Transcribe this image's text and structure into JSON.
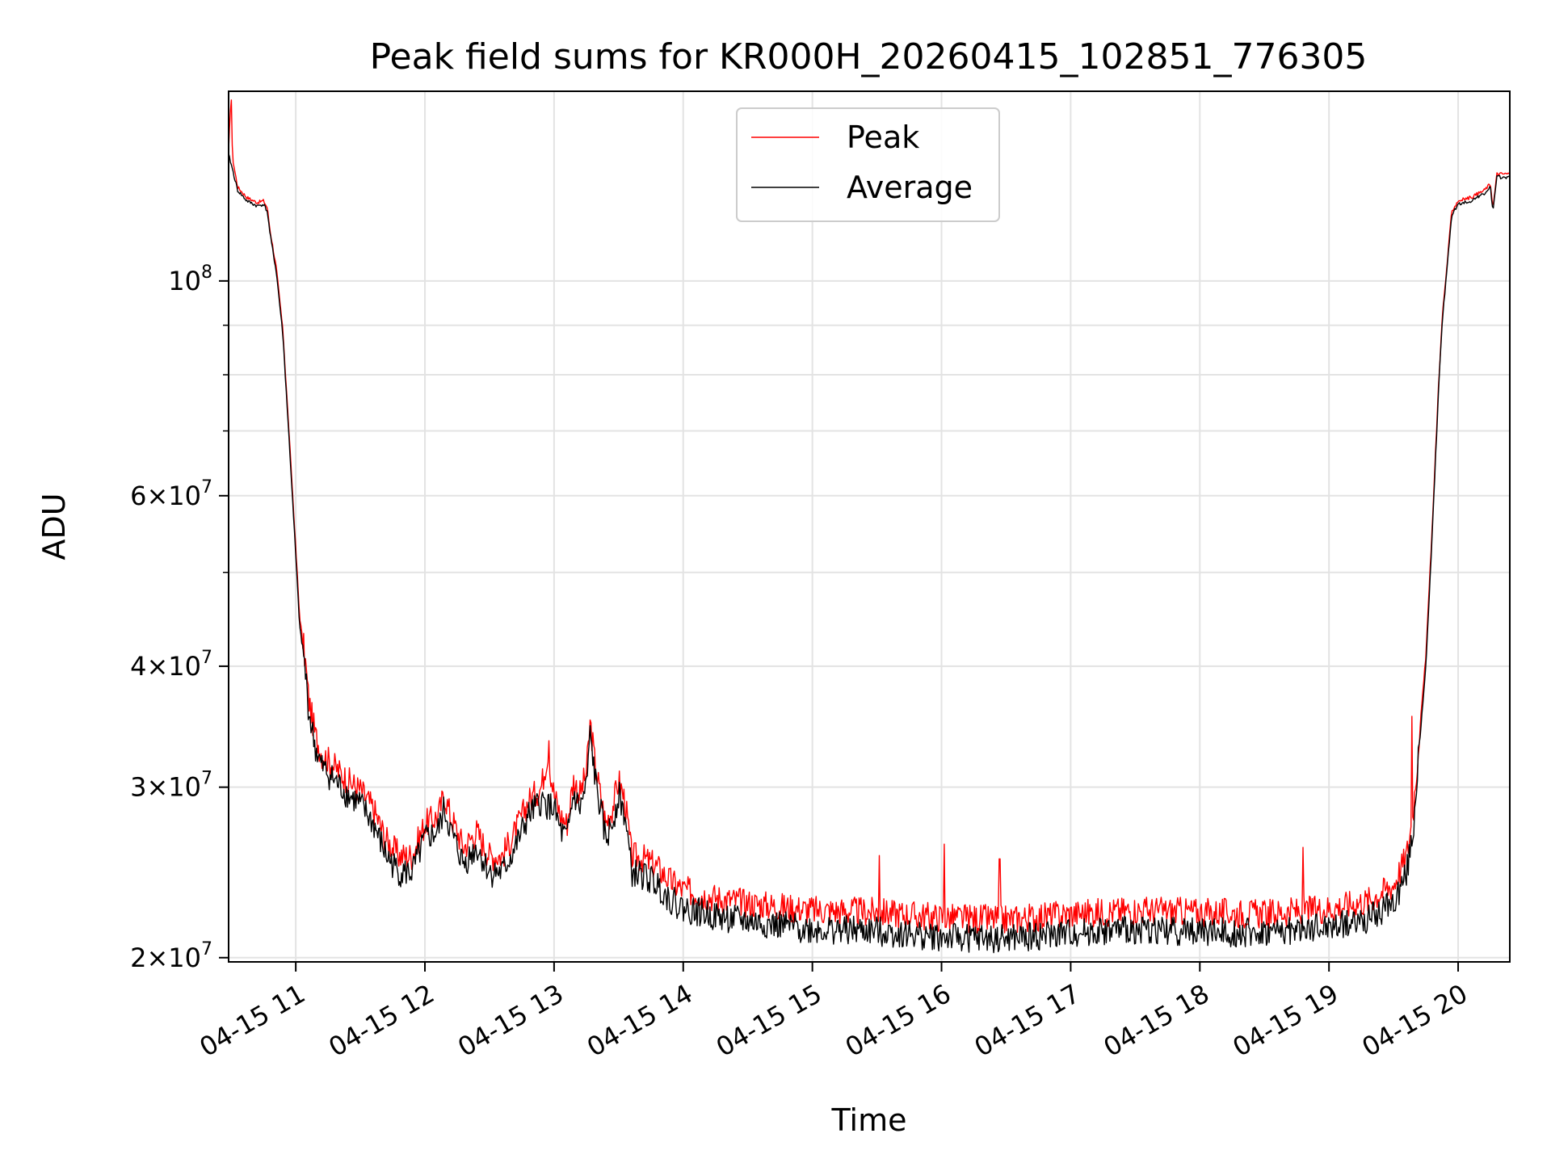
{
  "chart_data": {
    "type": "line",
    "title": "Peak field sums for KR000H_20260415_102851_776305",
    "xlabel": "Time",
    "ylabel": "ADU",
    "yscale": "log",
    "xlim_hours": [
      10.48,
      20.4
    ],
    "ylim": [
      19800000,
      157000000
    ],
    "x_ticks": [
      {
        "value": 11,
        "label": "04-15 11"
      },
      {
        "value": 12,
        "label": "04-15 12"
      },
      {
        "value": 13,
        "label": "04-15 13"
      },
      {
        "value": 14,
        "label": "04-15 14"
      },
      {
        "value": 15,
        "label": "04-15 15"
      },
      {
        "value": 16,
        "label": "04-15 16"
      },
      {
        "value": 17,
        "label": "04-15 17"
      },
      {
        "value": 18,
        "label": "04-15 18"
      },
      {
        "value": 19,
        "label": "04-15 19"
      },
      {
        "value": 20,
        "label": "04-15 20"
      }
    ],
    "y_ticks": [
      {
        "value": 20000000,
        "mant": "2",
        "exp": "7"
      },
      {
        "value": 30000000,
        "mant": "3",
        "exp": "7"
      },
      {
        "value": 40000000,
        "mant": "4",
        "exp": "7"
      },
      {
        "value": 60000000,
        "mant": "6",
        "exp": "7"
      },
      {
        "value": 100000000,
        "mant": "",
        "exp": "8"
      }
    ],
    "y_minor_ticks": [
      50000000,
      70000000,
      80000000,
      90000000
    ],
    "grid": true,
    "legend": {
      "position": "top-center",
      "entries": [
        {
          "name": "Peak",
          "color": "#ff0000"
        },
        {
          "name": "Average",
          "color": "#000000"
        }
      ]
    },
    "series": [
      {
        "name": "Average",
        "color": "#000000",
        "points": [
          [
            10.48,
            135000000
          ],
          [
            10.5,
            132000000
          ],
          [
            10.55,
            124000000
          ],
          [
            10.62,
            121000000
          ],
          [
            10.7,
            119500000
          ],
          [
            10.75,
            120000000
          ],
          [
            10.78,
            118000000
          ],
          [
            10.8,
            112000000
          ],
          [
            10.85,
            102000000
          ],
          [
            10.9,
            88000000
          ],
          [
            10.95,
            68000000
          ],
          [
            11.0,
            52000000
          ],
          [
            11.03,
            44000000
          ],
          [
            11.07,
            40000000
          ],
          [
            11.1,
            36000000
          ],
          [
            11.15,
            33000000
          ],
          [
            11.2,
            31500000
          ],
          [
            11.3,
            30500000
          ],
          [
            11.4,
            29500000
          ],
          [
            11.5,
            28800000
          ],
          [
            11.6,
            27500000
          ],
          [
            11.7,
            25500000
          ],
          [
            11.8,
            24500000
          ],
          [
            11.9,
            24500000
          ],
          [
            12.0,
            26500000
          ],
          [
            12.1,
            27000000
          ],
          [
            12.15,
            28500000
          ],
          [
            12.2,
            27000000
          ],
          [
            12.3,
            25000000
          ],
          [
            12.4,
            26000000
          ],
          [
            12.5,
            24500000
          ],
          [
            12.6,
            24500000
          ],
          [
            12.7,
            26000000
          ],
          [
            12.8,
            28000000
          ],
          [
            12.9,
            29000000
          ],
          [
            13.0,
            28500000
          ],
          [
            13.05,
            27000000
          ],
          [
            13.1,
            26500000
          ],
          [
            13.15,
            29500000
          ],
          [
            13.2,
            28500000
          ],
          [
            13.25,
            30000000
          ],
          [
            13.28,
            34000000
          ],
          [
            13.32,
            30500000
          ],
          [
            13.4,
            26500000
          ],
          [
            13.45,
            27500000
          ],
          [
            13.5,
            29500000
          ],
          [
            13.55,
            28000000
          ],
          [
            13.6,
            24500000
          ],
          [
            13.7,
            24300000
          ],
          [
            13.8,
            23800000
          ],
          [
            13.9,
            23000000
          ],
          [
            14.0,
            22500000
          ],
          [
            14.3,
            22000000
          ],
          [
            14.6,
            21700000
          ],
          [
            15.0,
            21400000
          ],
          [
            15.5,
            21300000
          ],
          [
            16.0,
            21000000
          ],
          [
            16.5,
            20900000
          ],
          [
            17.0,
            21200000
          ],
          [
            17.5,
            21400000
          ],
          [
            18.0,
            21300000
          ],
          [
            18.5,
            21200000
          ],
          [
            19.0,
            21500000
          ],
          [
            19.3,
            21900000
          ],
          [
            19.5,
            22800000
          ],
          [
            19.6,
            24500000
          ],
          [
            19.65,
            27000000
          ],
          [
            19.7,
            33000000
          ],
          [
            19.75,
            40000000
          ],
          [
            19.8,
            55000000
          ],
          [
            19.85,
            78000000
          ],
          [
            19.88,
            92000000
          ],
          [
            19.9,
            98000000
          ],
          [
            19.95,
            117000000
          ],
          [
            20.0,
            120000000
          ],
          [
            20.1,
            121000000
          ],
          [
            20.2,
            123000000
          ],
          [
            20.25,
            125000000
          ],
          [
            20.27,
            118000000
          ],
          [
            20.3,
            128000000
          ],
          [
            20.4,
            128000000
          ]
        ]
      },
      {
        "name": "Peak",
        "color": "#ff0000",
        "points": [
          [
            10.48,
            136000000
          ],
          [
            10.5,
            157000000
          ],
          [
            10.51,
            134000000
          ],
          [
            10.55,
            125000000
          ],
          [
            10.62,
            122000000
          ],
          [
            10.7,
            120500000
          ],
          [
            10.75,
            121000000
          ],
          [
            10.78,
            119000000
          ],
          [
            10.8,
            113000000
          ],
          [
            10.85,
            103000000
          ],
          [
            10.9,
            89000000
          ],
          [
            10.95,
            69000000
          ],
          [
            11.0,
            53000000
          ],
          [
            11.03,
            45000000
          ],
          [
            11.07,
            41000000
          ],
          [
            11.1,
            37000000
          ],
          [
            11.15,
            34000000
          ],
          [
            11.2,
            32500000
          ],
          [
            11.3,
            31500000
          ],
          [
            11.4,
            30500000
          ],
          [
            11.5,
            29800000
          ],
          [
            11.6,
            28500000
          ],
          [
            11.7,
            26500000
          ],
          [
            11.8,
            25500000
          ],
          [
            11.9,
            25500000
          ],
          [
            12.0,
            27500000
          ],
          [
            12.1,
            28000000
          ],
          [
            12.15,
            29500000
          ],
          [
            12.2,
            28000000
          ],
          [
            12.3,
            26000000
          ],
          [
            12.4,
            27000000
          ],
          [
            12.5,
            25500000
          ],
          [
            12.6,
            25500000
          ],
          [
            12.7,
            27000000
          ],
          [
            12.8,
            29000000
          ],
          [
            12.9,
            30000000
          ],
          [
            12.95,
            32500000
          ],
          [
            13.0,
            29500000
          ],
          [
            13.05,
            28000000
          ],
          [
            13.1,
            27500000
          ],
          [
            13.15,
            30500000
          ],
          [
            13.2,
            29500000
          ],
          [
            13.25,
            31000000
          ],
          [
            13.28,
            35000000
          ],
          [
            13.32,
            31500000
          ],
          [
            13.4,
            27500000
          ],
          [
            13.45,
            28500000
          ],
          [
            13.5,
            30500000
          ],
          [
            13.55,
            29000000
          ],
          [
            13.6,
            25500000
          ],
          [
            13.7,
            25300000
          ],
          [
            13.8,
            24800000
          ],
          [
            13.9,
            24000000
          ],
          [
            14.0,
            23500000
          ],
          [
            14.3,
            23000000
          ],
          [
            14.6,
            22700000
          ],
          [
            15.0,
            22400000
          ],
          [
            15.5,
            22300000
          ],
          [
            16.0,
            22000000
          ],
          [
            16.5,
            21900000
          ],
          [
            17.0,
            22200000
          ],
          [
            17.5,
            22400000
          ],
          [
            18.0,
            22300000
          ],
          [
            18.5,
            22200000
          ],
          [
            19.0,
            22500000
          ],
          [
            19.3,
            22900000
          ],
          [
            19.5,
            23800000
          ],
          [
            19.6,
            25500000
          ],
          [
            19.65,
            28000000
          ],
          [
            19.7,
            34000000
          ],
          [
            19.75,
            41000000
          ],
          [
            19.8,
            56000000
          ],
          [
            19.85,
            79000000
          ],
          [
            19.88,
            93000000
          ],
          [
            19.9,
            99000000
          ],
          [
            19.95,
            118000000
          ],
          [
            20.0,
            121000000
          ],
          [
            20.1,
            122000000
          ],
          [
            20.2,
            124000000
          ],
          [
            20.25,
            126000000
          ],
          [
            20.27,
            119000000
          ],
          [
            20.3,
            129000000
          ],
          [
            20.4,
            129000000
          ]
        ],
        "spikes": [
          [
            15.52,
            25500000
          ],
          [
            16.02,
            26200000
          ],
          [
            16.45,
            25300000
          ],
          [
            18.8,
            26000000
          ],
          [
            19.64,
            35500000
          ],
          [
            12.96,
            33500000
          ]
        ]
      }
    ]
  }
}
